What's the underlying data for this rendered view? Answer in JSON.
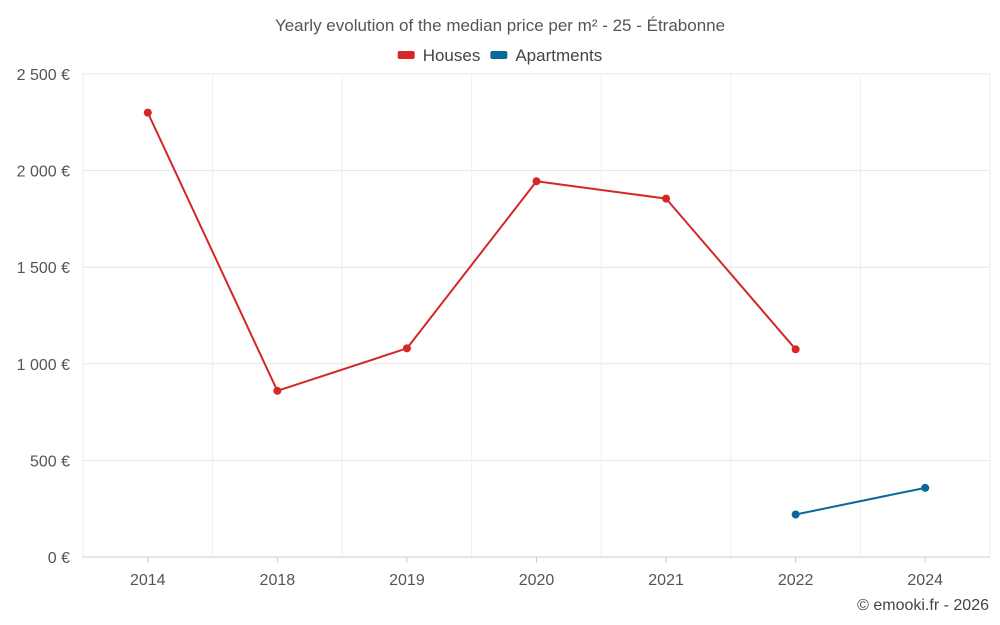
{
  "chart_data": {
    "type": "line",
    "title": "Yearly evolution of the median price per m² - 25 - Étrabonne",
    "categories": [
      "2014",
      "2018",
      "2019",
      "2020",
      "2021",
      "2022",
      "2024"
    ],
    "y_ticks": [
      "0 €",
      "500 €",
      "1 000 €",
      "1 500 €",
      "2 000 €",
      "2 500 €"
    ],
    "ylim": [
      0,
      2500
    ],
    "grid": true,
    "legend_position": "top-center",
    "series": [
      {
        "name": "Houses",
        "color": "#d62728",
        "values": [
          2300,
          860,
          1080,
          1945,
          1855,
          1075,
          null
        ]
      },
      {
        "name": "Apartments",
        "color": "#08699b",
        "values": [
          null,
          null,
          null,
          null,
          null,
          220,
          358
        ]
      }
    ]
  },
  "credit": "© emooki.fr - 2026"
}
